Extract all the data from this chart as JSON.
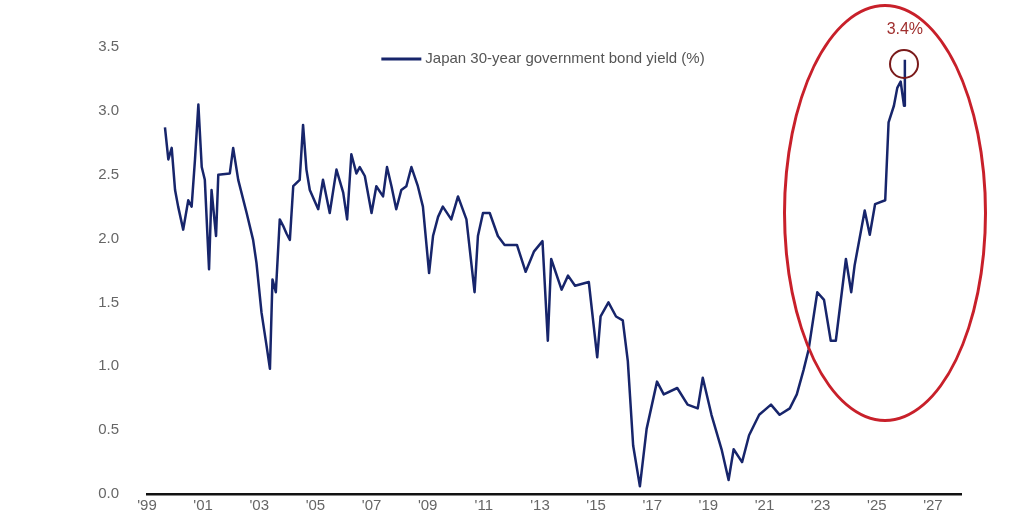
{
  "chart_data": {
    "type": "line",
    "series": [
      {
        "name": "Japan 30-year government bond yield (%)",
        "color": "#17256b",
        "x": [
          1999.64,
          1999.76,
          1999.88,
          2000.0,
          2000.11,
          2000.29,
          2000.47,
          2000.59,
          2000.71,
          2000.83,
          2000.95,
          2001.06,
          2001.21,
          2001.3,
          2001.46,
          2001.54,
          2001.95,
          2002.07,
          2002.25,
          2002.55,
          2002.78,
          2002.9,
          2003.08,
          2003.26,
          2003.38,
          2003.47,
          2003.59,
          2003.73,
          2003.85,
          2003.97,
          2004.09,
          2004.21,
          2004.44,
          2004.56,
          2004.68,
          2004.8,
          2005.1,
          2005.27,
          2005.51,
          2005.75,
          2005.99,
          2006.13,
          2006.28,
          2006.46,
          2006.58,
          2006.76,
          2007.0,
          2007.17,
          2007.41,
          2007.55,
          2007.71,
          2007.88,
          2008.06,
          2008.24,
          2008.42,
          2008.65,
          2008.83,
          2009.05,
          2009.19,
          2009.37,
          2009.54,
          2009.84,
          2010.08,
          2010.38,
          2010.67,
          2010.79,
          2010.97,
          2011.21,
          2011.5,
          2011.74,
          2012.18,
          2012.49,
          2012.79,
          2013.09,
          2013.28,
          2013.4,
          2013.77,
          2014.0,
          2014.25,
          2014.74,
          2015.04,
          2015.16,
          2015.44,
          2015.71,
          2015.95,
          2016.13,
          2016.32,
          2016.56,
          2016.8,
          2017.17,
          2017.41,
          2017.89,
          2018.26,
          2018.62,
          2018.8,
          2019.11,
          2019.47,
          2019.72,
          2019.9,
          2020.2,
          2020.45,
          2020.81,
          2021.23,
          2021.54,
          2021.9,
          2022.15,
          2022.39,
          2022.57,
          2022.88,
          2023.12,
          2023.36,
          2023.54,
          2023.9,
          2024.09,
          2024.21,
          2024.57,
          2024.75,
          2024.94,
          2025.3,
          2025.42,
          2025.61,
          2025.73,
          2025.85,
          2025.97,
          2026.0
        ],
        "values": [
          2.87,
          2.62,
          2.71,
          2.38,
          2.25,
          2.07,
          2.3,
          2.25,
          2.62,
          3.05,
          2.56,
          2.46,
          1.76,
          2.38,
          2.02,
          2.5,
          2.51,
          2.71,
          2.46,
          2.2,
          1.99,
          1.81,
          1.42,
          1.16,
          0.98,
          1.68,
          1.58,
          2.15,
          2.1,
          2.04,
          1.99,
          2.41,
          2.46,
          2.89,
          2.54,
          2.38,
          2.23,
          2.46,
          2.2,
          2.54,
          2.36,
          2.15,
          2.66,
          2.51,
          2.56,
          2.49,
          2.2,
          2.41,
          2.33,
          2.56,
          2.41,
          2.23,
          2.38,
          2.41,
          2.56,
          2.41,
          2.25,
          1.73,
          2.02,
          2.17,
          2.25,
          2.15,
          2.33,
          2.15,
          1.58,
          2.02,
          2.2,
          2.2,
          2.02,
          1.95,
          1.95,
          1.74,
          1.9,
          1.98,
          1.2,
          1.84,
          1.6,
          1.71,
          1.63,
          1.66,
          1.07,
          1.39,
          1.5,
          1.39,
          1.36,
          1.04,
          0.38,
          0.06,
          0.51,
          0.88,
          0.78,
          0.83,
          0.7,
          0.67,
          0.91,
          0.62,
          0.35,
          0.11,
          0.35,
          0.25,
          0.46,
          0.62,
          0.7,
          0.62,
          0.67,
          0.78,
          0.97,
          1.13,
          1.58,
          1.52,
          1.2,
          1.2,
          1.84,
          1.58,
          1.79,
          2.22,
          2.03,
          2.27,
          2.3,
          2.91,
          3.04,
          3.18,
          3.23,
          3.04,
          3.4
        ]
      }
    ],
    "xlim": [
      1999,
      2028
    ],
    "xticks": [
      {
        "value": 1999,
        "label": "'99"
      },
      {
        "value": 2001,
        "label": "'01"
      },
      {
        "value": 2003,
        "label": "'03"
      },
      {
        "value": 2005,
        "label": "'05"
      },
      {
        "value": 2007,
        "label": "'07"
      },
      {
        "value": 2009,
        "label": "'09"
      },
      {
        "value": 2011,
        "label": "'11"
      },
      {
        "value": 2013,
        "label": "'13"
      },
      {
        "value": 2015,
        "label": "'15"
      },
      {
        "value": 2017,
        "label": "'17"
      },
      {
        "value": 2019,
        "label": "'19"
      },
      {
        "value": 2021,
        "label": "'21"
      },
      {
        "value": 2023,
        "label": "'23"
      },
      {
        "value": 2025,
        "label": "'25"
      },
      {
        "value": 2027,
        "label": "'27"
      }
    ],
    "ylim": [
      0,
      3.5
    ],
    "yticks": [
      {
        "value": 0,
        "label": "0.0"
      },
      0.5,
      {
        "value": 1,
        "label": "1.0"
      },
      1.5,
      {
        "value": 2,
        "label": "2.0"
      },
      2.5,
      {
        "value": 3,
        "label": "3.0"
      },
      3.5
    ],
    "annotations": [
      {
        "text": "3.4%",
        "x": 2026.0,
        "y": 3.4
      }
    ],
    "legend": "top",
    "grid": false,
    "marker": "none",
    "line_style": "solid"
  }
}
